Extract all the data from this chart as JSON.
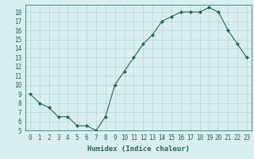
{
  "x": [
    0,
    1,
    2,
    3,
    4,
    5,
    6,
    7,
    8,
    9,
    10,
    11,
    12,
    13,
    14,
    15,
    16,
    17,
    18,
    19,
    20,
    21,
    22,
    23
  ],
  "y": [
    9.0,
    8.0,
    7.5,
    6.5,
    6.5,
    5.5,
    5.5,
    5.0,
    6.5,
    10.0,
    11.5,
    13.0,
    14.5,
    15.5,
    17.0,
    17.5,
    18.0,
    18.0,
    18.0,
    18.5,
    18.0,
    16.0,
    14.5,
    13.0
  ],
  "line_color": "#1a6b5a",
  "marker": "D",
  "marker_size": 2,
  "bg_color": "#d9eeee",
  "grid_color": "#b8d4d4",
  "xlabel": "Humidex (Indice chaleur)",
  "xlim": [
    -0.5,
    23.5
  ],
  "ylim": [
    5,
    18.8
  ],
  "yticks": [
    5,
    6,
    7,
    8,
    9,
    10,
    11,
    12,
    13,
    14,
    15,
    16,
    17,
    18
  ],
  "xticks": [
    0,
    1,
    2,
    3,
    4,
    5,
    6,
    7,
    8,
    9,
    10,
    11,
    12,
    13,
    14,
    15,
    16,
    17,
    18,
    19,
    20,
    21,
    22,
    23
  ],
  "label_fontsize": 6.5,
  "tick_fontsize": 5.5
}
